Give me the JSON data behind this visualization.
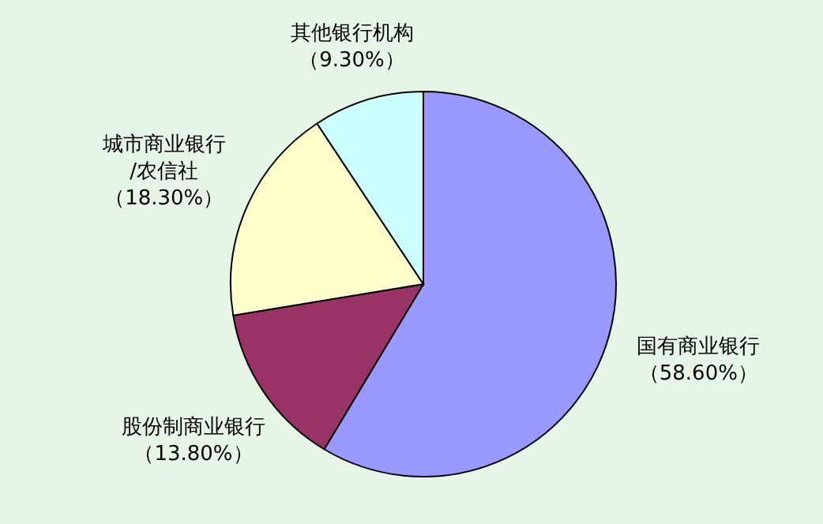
{
  "chart_data": {
    "type": "pie",
    "categories": [
      "国有商业银行",
      "股份制商业银行",
      "城市商业银行\n/农信社",
      "其他银行机构"
    ],
    "values": [
      58.6,
      13.8,
      18.3,
      9.3
    ],
    "value_labels": [
      "（58.60%）",
      "（13.80%）",
      "（18.30%）",
      "（9.30%）"
    ],
    "colors": [
      "#9999ff",
      "#993366",
      "#ffffcc",
      "#ccffff"
    ],
    "legend": false
  }
}
